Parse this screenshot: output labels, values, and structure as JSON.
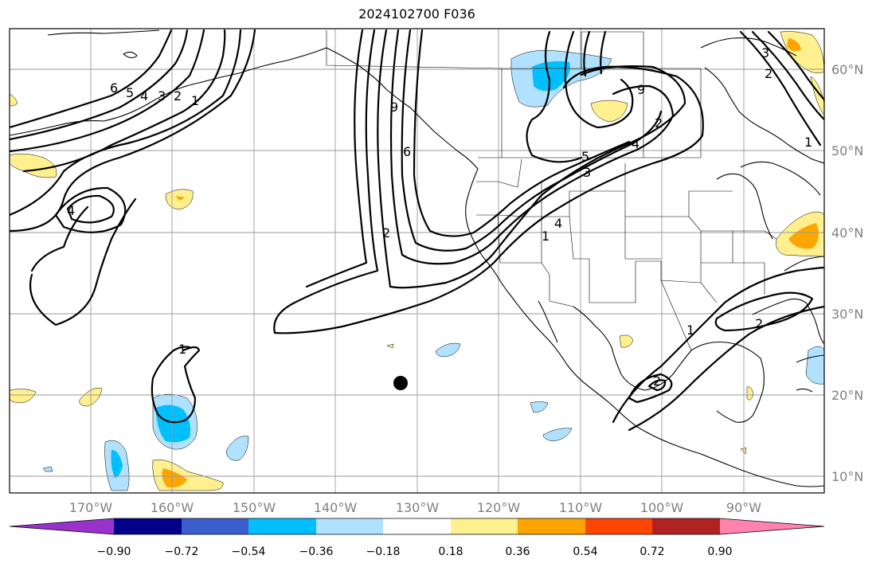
{
  "title": "2024102700 F036",
  "lon_labels": [
    "170°W",
    "160°W",
    "150°W",
    "140°W",
    "130°W",
    "120°W",
    "110°W",
    "100°W",
    "90°W"
  ],
  "lat_labels": [
    "60°N",
    "50°N",
    "40°N",
    "30°N",
    "20°N",
    "10°N"
  ],
  "colorbar": {
    "colors": [
      "#9932cc",
      "#00008b",
      "#3a5fcd",
      "#00bfff",
      "#b0e2ff",
      "#ffffff",
      "#fff08f",
      "#ffa500",
      "#ff4500",
      "#b22222",
      "#ff83aa"
    ],
    "tick_labels": [
      "−0.90",
      "−0.72",
      "−0.54",
      "−0.36",
      "−0.18",
      "0.18",
      "0.36",
      "0.54",
      "0.72",
      "0.90"
    ]
  },
  "contour_labels": [
    "6",
    "5",
    "4",
    "3",
    "2",
    "1",
    "4",
    "2",
    "9",
    "6",
    "5",
    "4",
    "3",
    "1",
    "9",
    "2",
    "1",
    "2",
    "2",
    "1",
    "3",
    "2",
    "1",
    "4"
  ],
  "marker": "black-dot"
}
